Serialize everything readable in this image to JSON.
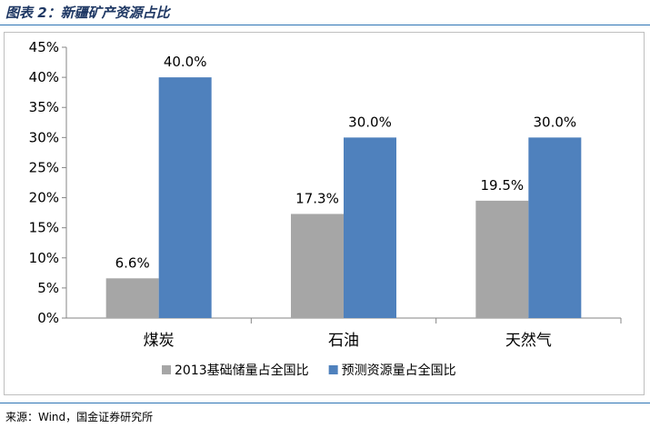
{
  "figure_title": "图表 2：新疆矿产资源占比",
  "source": "来源：Wind，国金证券研究所",
  "chart_data": {
    "type": "bar",
    "categories": [
      "煤炭",
      "石油",
      "天然气"
    ],
    "series": [
      {
        "name": "2013基础储量占全国比",
        "values": [
          6.6,
          17.3,
          19.5
        ],
        "color": "#a6a6a6",
        "labels": [
          "6.6%",
          "17.3%",
          "19.5%"
        ]
      },
      {
        "name": "预测资源量占全国比",
        "values": [
          40.0,
          30.0,
          30.0
        ],
        "color": "#4f81bd",
        "labels": [
          "40.0%",
          "30.0%",
          "30.0%"
        ]
      }
    ],
    "yticks": [
      0,
      5,
      10,
      15,
      20,
      25,
      30,
      35,
      40,
      45
    ],
    "ytick_labels": [
      "0%",
      "5%",
      "10%",
      "15%",
      "20%",
      "25%",
      "30%",
      "35%",
      "40%",
      "45%"
    ],
    "ylim": [
      0,
      45
    ],
    "grid": false,
    "legend_position": "bottom"
  }
}
